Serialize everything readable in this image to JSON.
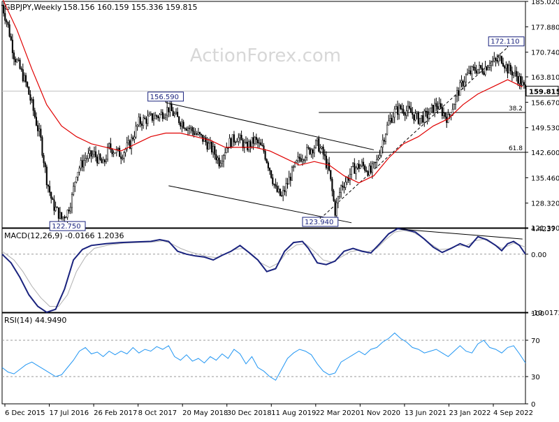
{
  "chart_data": {
    "type": "candlestick",
    "header": {
      "symbol_tf": "GBPJPY,Weekly",
      "ohlc": "158.156 160.159 155.336 159.815"
    },
    "watermark": "ActionForex.com",
    "price_axis": {
      "ticks": [
        "185.020",
        "177.880",
        "170.740",
        "163.810",
        "156.670",
        "149.530",
        "142.600",
        "135.460",
        "128.320",
        "121.390"
      ],
      "min": 121.39,
      "max": 185.02,
      "current_price": 159.815,
      "current_price_label": "159.815"
    },
    "x_axis": {
      "labels": [
        "6 Dec 2015",
        "17 Jul 2016",
        "26 Feb 2017",
        "8 Oct 2017",
        "20 May 2018",
        "30 Dec 2018",
        "11 Aug 2019",
        "22 Mar 2020",
        "1 Nov 2020",
        "13 Jun 2021",
        "23 Jan 2022",
        "4 Sep 2022"
      ],
      "total_weeks": 352
    },
    "price_series": {
      "weekly_close": [
        [
          0,
          184
        ],
        [
          4,
          178
        ],
        [
          8,
          170
        ],
        [
          12,
          166
        ],
        [
          16,
          162
        ],
        [
          20,
          156
        ],
        [
          26,
          146
        ],
        [
          30,
          135
        ],
        [
          34,
          128
        ],
        [
          40,
          124
        ],
        [
          44,
          126
        ],
        [
          47,
          130
        ],
        [
          50,
          137
        ],
        [
          56,
          141
        ],
        [
          62,
          142
        ],
        [
          68,
          139
        ],
        [
          72,
          144
        ],
        [
          80,
          142
        ],
        [
          86,
          145
        ],
        [
          92,
          151
        ],
        [
          98,
          152
        ],
        [
          106,
          153
        ],
        [
          112,
          155
        ],
        [
          118,
          152
        ],
        [
          124,
          150
        ],
        [
          130,
          148
        ],
        [
          136,
          146
        ],
        [
          142,
          143
        ],
        [
          146,
          140
        ],
        [
          152,
          145
        ],
        [
          158,
          147
        ],
        [
          164,
          144
        ],
        [
          170,
          146
        ],
        [
          176,
          143
        ],
        [
          180,
          138
        ],
        [
          184,
          132
        ],
        [
          188,
          130
        ],
        [
          194,
          136
        ],
        [
          200,
          141
        ],
        [
          206,
          143
        ],
        [
          212,
          145
        ],
        [
          216,
          142
        ],
        [
          220,
          137
        ],
        [
          224,
          126
        ],
        [
          228,
          133
        ],
        [
          232,
          135
        ],
        [
          236,
          138
        ],
        [
          242,
          139
        ],
        [
          248,
          137
        ],
        [
          252,
          140
        ],
        [
          256,
          146
        ],
        [
          260,
          151
        ],
        [
          264,
          154
        ],
        [
          268,
          155
        ],
        [
          274,
          154
        ],
        [
          280,
          152
        ],
        [
          286,
          153
        ],
        [
          292,
          156
        ],
        [
          296,
          154
        ],
        [
          300,
          152
        ],
        [
          306,
          159
        ],
        [
          312,
          164
        ],
        [
          318,
          166
        ],
        [
          324,
          166
        ],
        [
          328,
          168
        ],
        [
          332,
          168
        ],
        [
          336,
          169
        ],
        [
          340,
          166
        ],
        [
          344,
          165
        ],
        [
          348,
          163
        ],
        [
          352,
          159.8
        ]
      ],
      "ma55": [
        [
          0,
          186
        ],
        [
          10,
          177
        ],
        [
          20,
          166
        ],
        [
          30,
          156
        ],
        [
          40,
          150
        ],
        [
          50,
          147
        ],
        [
          60,
          145
        ],
        [
          70,
          144
        ],
        [
          80,
          143
        ],
        [
          90,
          145
        ],
        [
          100,
          147
        ],
        [
          110,
          148
        ],
        [
          120,
          148
        ],
        [
          130,
          147
        ],
        [
          140,
          146
        ],
        [
          150,
          144
        ],
        [
          160,
          144
        ],
        [
          170,
          144
        ],
        [
          180,
          143
        ],
        [
          190,
          141
        ],
        [
          200,
          139
        ],
        [
          210,
          140
        ],
        [
          220,
          139
        ],
        [
          230,
          136
        ],
        [
          240,
          134
        ],
        [
          250,
          136
        ],
        [
          260,
          141
        ],
        [
          270,
          145
        ],
        [
          280,
          147
        ],
        [
          290,
          150
        ],
        [
          300,
          152
        ],
        [
          310,
          156
        ],
        [
          320,
          159
        ],
        [
          330,
          161
        ],
        [
          340,
          163
        ],
        [
          350,
          161
        ]
      ],
      "callouts": [
        {
          "label": "185.020",
          "week": 0,
          "price": 185.02,
          "show": false
        },
        {
          "label": "156.590",
          "week": 110,
          "price": 156.59
        },
        {
          "label": "122.750",
          "week": 44,
          "price": 122.75
        },
        {
          "label": "123.940",
          "week": 214,
          "price": 123.94
        },
        {
          "label": "172.110",
          "week": 340,
          "price": 172.11
        }
      ],
      "fib_levels": [
        {
          "label": "38.2",
          "price": 153.8,
          "from_week": 213
        },
        {
          "label": "61.8",
          "price": 142.6,
          "from_week": 213
        }
      ],
      "trendlines": [
        {
          "from": [
            110,
            156.59
          ],
          "to": [
            250,
            143.3
          ],
          "style": "solid"
        },
        {
          "from": [
            112,
            133.2
          ],
          "to": [
            235,
            122.8
          ],
          "style": "solid"
        },
        {
          "from": [
            214,
            123.94
          ],
          "to": [
            340,
            172.11
          ],
          "style": "dashed"
        }
      ]
    },
    "macd": {
      "label": "MACD(12,26,9) -0.0166 1.2036",
      "ticks": [
        "4.4237",
        "0.00",
        "-10.0172"
      ],
      "min": -10.0172,
      "max": 4.4237,
      "main": [
        [
          0,
          0
        ],
        [
          6,
          -1.5
        ],
        [
          12,
          -4
        ],
        [
          18,
          -7
        ],
        [
          24,
          -9
        ],
        [
          30,
          -10
        ],
        [
          36,
          -9.5
        ],
        [
          42,
          -6
        ],
        [
          48,
          -1
        ],
        [
          54,
          0.8
        ],
        [
          60,
          1.5
        ],
        [
          70,
          1.8
        ],
        [
          80,
          2
        ],
        [
          90,
          2.1
        ],
        [
          100,
          2.2
        ],
        [
          106,
          2.5
        ],
        [
          112,
          2.2
        ],
        [
          118,
          0.5
        ],
        [
          124,
          0
        ],
        [
          130,
          -0.3
        ],
        [
          136,
          -0.5
        ],
        [
          142,
          -1
        ],
        [
          148,
          -0.2
        ],
        [
          154,
          0.5
        ],
        [
          160,
          1.5
        ],
        [
          166,
          0.3
        ],
        [
          172,
          -1
        ],
        [
          178,
          -3
        ],
        [
          184,
          -2.5
        ],
        [
          190,
          0.5
        ],
        [
          196,
          2
        ],
        [
          202,
          2.2
        ],
        [
          206,
          1
        ],
        [
          212,
          -1.5
        ],
        [
          218,
          -1.8
        ],
        [
          224,
          -1.2
        ],
        [
          230,
          0.5
        ],
        [
          236,
          1
        ],
        [
          242,
          0.5
        ],
        [
          248,
          0.2
        ],
        [
          254,
          1.8
        ],
        [
          260,
          3.5
        ],
        [
          266,
          4.4
        ],
        [
          272,
          4.2
        ],
        [
          278,
          3.8
        ],
        [
          284,
          2.6
        ],
        [
          290,
          1.2
        ],
        [
          296,
          0.3
        ],
        [
          302,
          1
        ],
        [
          308,
          1.8
        ],
        [
          314,
          1.2
        ],
        [
          320,
          3
        ],
        [
          326,
          2.5
        ],
        [
          332,
          1.5
        ],
        [
          336,
          0.6
        ],
        [
          340,
          1.8
        ],
        [
          344,
          2.2
        ],
        [
          348,
          1.5
        ],
        [
          352,
          0
        ]
      ],
      "signal": [
        [
          0,
          0.5
        ],
        [
          8,
          -1
        ],
        [
          14,
          -3
        ],
        [
          20,
          -5.5
        ],
        [
          26,
          -7.5
        ],
        [
          32,
          -9
        ],
        [
          38,
          -9
        ],
        [
          44,
          -7
        ],
        [
          50,
          -3
        ],
        [
          56,
          -0.5
        ],
        [
          62,
          1
        ],
        [
          72,
          1.6
        ],
        [
          82,
          1.9
        ],
        [
          92,
          2
        ],
        [
          102,
          2.1
        ],
        [
          108,
          2.3
        ],
        [
          114,
          1.8
        ],
        [
          120,
          1
        ],
        [
          126,
          0.4
        ],
        [
          132,
          0
        ],
        [
          138,
          -0.4
        ],
        [
          144,
          -0.6
        ],
        [
          150,
          0
        ],
        [
          156,
          0.8
        ],
        [
          162,
          1
        ],
        [
          168,
          0
        ],
        [
          174,
          -1.5
        ],
        [
          180,
          -2.3
        ],
        [
          186,
          -1.5
        ],
        [
          192,
          0.5
        ],
        [
          198,
          1.6
        ],
        [
          204,
          1.8
        ],
        [
          210,
          0.5
        ],
        [
          216,
          -1
        ],
        [
          222,
          -1.4
        ],
        [
          228,
          -0.5
        ],
        [
          234,
          0.4
        ],
        [
          240,
          0.7
        ],
        [
          246,
          0.4
        ],
        [
          252,
          1
        ],
        [
          258,
          2.5
        ],
        [
          264,
          3.8
        ],
        [
          270,
          4.1
        ],
        [
          276,
          3.8
        ],
        [
          282,
          3
        ],
        [
          288,
          1.8
        ],
        [
          294,
          0.8
        ],
        [
          300,
          0.9
        ],
        [
          306,
          1.5
        ],
        [
          312,
          1.4
        ],
        [
          318,
          2.3
        ],
        [
          324,
          2.6
        ],
        [
          330,
          1.8
        ],
        [
          336,
          1
        ],
        [
          340,
          1.4
        ],
        [
          344,
          1.9
        ],
        [
          348,
          1.6
        ],
        [
          352,
          1.2
        ]
      ],
      "trendline": {
        "from": [
          268,
          4.3
        ],
        "to": [
          350,
          2.6
        ]
      }
    },
    "rsi": {
      "label": "RSI(14) 44.9490",
      "ticks": [
        "100",
        "70",
        "30",
        "0"
      ],
      "min": 0,
      "max": 100,
      "levels": [
        70,
        30
      ],
      "values": [
        [
          0,
          40
        ],
        [
          4,
          35
        ],
        [
          8,
          33
        ],
        [
          12,
          38
        ],
        [
          16,
          43
        ],
        [
          20,
          46
        ],
        [
          24,
          42
        ],
        [
          28,
          38
        ],
        [
          32,
          34
        ],
        [
          36,
          30
        ],
        [
          40,
          32
        ],
        [
          44,
          40
        ],
        [
          48,
          48
        ],
        [
          52,
          58
        ],
        [
          56,
          62
        ],
        [
          60,
          55
        ],
        [
          64,
          57
        ],
        [
          68,
          52
        ],
        [
          72,
          58
        ],
        [
          76,
          54
        ],
        [
          80,
          58
        ],
        [
          84,
          55
        ],
        [
          88,
          62
        ],
        [
          92,
          56
        ],
        [
          96,
          60
        ],
        [
          100,
          58
        ],
        [
          104,
          63
        ],
        [
          108,
          60
        ],
        [
          112,
          64
        ],
        [
          116,
          52
        ],
        [
          120,
          48
        ],
        [
          124,
          54
        ],
        [
          128,
          47
        ],
        [
          132,
          50
        ],
        [
          136,
          45
        ],
        [
          140,
          52
        ],
        [
          144,
          48
        ],
        [
          148,
          55
        ],
        [
          152,
          50
        ],
        [
          156,
          60
        ],
        [
          160,
          55
        ],
        [
          164,
          44
        ],
        [
          168,
          52
        ],
        [
          172,
          40
        ],
        [
          176,
          36
        ],
        [
          180,
          30
        ],
        [
          184,
          26
        ],
        [
          188,
          38
        ],
        [
          192,
          50
        ],
        [
          196,
          56
        ],
        [
          200,
          60
        ],
        [
          204,
          58
        ],
        [
          208,
          54
        ],
        [
          212,
          44
        ],
        [
          216,
          36
        ],
        [
          220,
          32
        ],
        [
          224,
          34
        ],
        [
          228,
          46
        ],
        [
          232,
          50
        ],
        [
          236,
          54
        ],
        [
          240,
          58
        ],
        [
          244,
          54
        ],
        [
          248,
          60
        ],
        [
          252,
          62
        ],
        [
          256,
          68
        ],
        [
          260,
          72
        ],
        [
          264,
          78
        ],
        [
          268,
          72
        ],
        [
          272,
          68
        ],
        [
          276,
          62
        ],
        [
          280,
          60
        ],
        [
          284,
          56
        ],
        [
          288,
          58
        ],
        [
          292,
          60
        ],
        [
          296,
          56
        ],
        [
          300,
          52
        ],
        [
          304,
          58
        ],
        [
          308,
          64
        ],
        [
          312,
          58
        ],
        [
          316,
          56
        ],
        [
          320,
          66
        ],
        [
          324,
          70
        ],
        [
          328,
          62
        ],
        [
          332,
          60
        ],
        [
          336,
          56
        ],
        [
          340,
          62
        ],
        [
          344,
          64
        ],
        [
          348,
          55
        ],
        [
          352,
          45
        ]
      ]
    }
  }
}
